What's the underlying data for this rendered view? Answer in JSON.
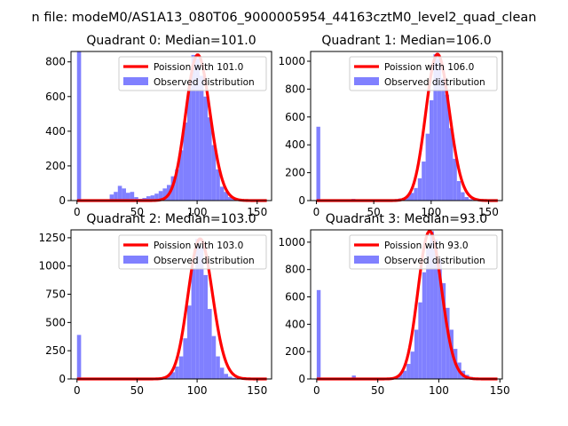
{
  "figure": {
    "suptitle": "n file: modeM0/AS1A13_080T06_9000005954_44163cztM0_level2_quad_clean"
  },
  "colors": {
    "hist": "#8080ff",
    "fit": "#ff0000",
    "axes": "#000000",
    "legend_border": "#cccccc"
  },
  "chart_data": [
    {
      "type": "bar",
      "title": "Quadrant 0: Median=101.0",
      "xlabel": "",
      "ylabel": "",
      "xlim": [
        -5,
        162
      ],
      "ylim": [
        0,
        860
      ],
      "xticks": [
        0,
        50,
        100,
        150
      ],
      "yticks": [
        0,
        200,
        400,
        600,
        800
      ],
      "grid": false,
      "legend_position": "upper-right",
      "bin_width": 3.4,
      "histogram": {
        "name": "Observed distribution",
        "x": [
          1.7,
          5.1,
          8.5,
          11.9,
          15.3,
          18.7,
          22.1,
          25.5,
          28.9,
          32.3,
          35.7,
          39.1,
          42.5,
          45.9,
          49.3,
          52.7,
          56.1,
          59.5,
          62.9,
          66.3,
          69.7,
          73.1,
          76.5,
          79.9,
          83.3,
          86.7,
          90.1,
          93.5,
          96.9,
          100.3,
          103.7,
          107.1,
          110.5,
          113.9,
          117.3,
          120.7,
          124.1,
          127.5,
          130.9,
          134.3,
          137.7,
          141.1,
          144.5,
          147.9,
          151.3,
          154.7
        ],
        "values": [
          860,
          2,
          2,
          2,
          2,
          2,
          3,
          5,
          35,
          50,
          85,
          70,
          45,
          50,
          20,
          10,
          15,
          25,
          30,
          40,
          55,
          70,
          90,
          140,
          180,
          290,
          450,
          650,
          840,
          820,
          720,
          600,
          480,
          320,
          180,
          80,
          50,
          20,
          10,
          5,
          3,
          2,
          1,
          1,
          1,
          0
        ]
      },
      "fit": {
        "name": "Poission with 101.0",
        "mean": 101.0
      }
    },
    {
      "type": "bar",
      "title": "Quadrant 1: Median=106.0",
      "xlabel": "",
      "ylabel": "",
      "xlim": [
        -5,
        162
      ],
      "ylim": [
        0,
        1070
      ],
      "xticks": [
        0,
        50,
        100,
        150
      ],
      "yticks": [
        0,
        200,
        400,
        600,
        800,
        1000
      ],
      "grid": false,
      "legend_position": "upper-right",
      "bin_width": 3.4,
      "histogram": {
        "name": "Observed distribution",
        "x": [
          1.7,
          5.1,
          8.5,
          11.9,
          15.3,
          18.7,
          22.1,
          25.5,
          28.9,
          32.3,
          35.7,
          39.1,
          42.5,
          45.9,
          49.3,
          52.7,
          56.1,
          59.5,
          62.9,
          66.3,
          69.7,
          73.1,
          76.5,
          79.9,
          83.3,
          86.7,
          90.1,
          93.5,
          96.9,
          100.3,
          103.7,
          107.1,
          110.5,
          113.9,
          117.3,
          120.7,
          124.1,
          127.5,
          130.9,
          134.3,
          137.7,
          141.1,
          144.5,
          147.9,
          151.3,
          154.7
        ],
        "values": [
          530,
          2,
          2,
          2,
          2,
          2,
          2,
          2,
          2,
          12,
          3,
          3,
          3,
          3,
          3,
          3,
          3,
          5,
          6,
          8,
          10,
          15,
          20,
          35,
          55,
          90,
          160,
          280,
          480,
          720,
          1050,
          1020,
          880,
          760,
          520,
          300,
          140,
          60,
          25,
          10,
          5,
          3,
          2,
          1,
          1,
          0
        ]
      },
      "fit": {
        "name": "Poission with 106.0",
        "mean": 106.0
      }
    },
    {
      "type": "bar",
      "title": "Quadrant 2: Median=103.0",
      "xlabel": "",
      "ylabel": "",
      "xlim": [
        -5,
        162
      ],
      "ylim": [
        0,
        1320
      ],
      "xticks": [
        0,
        50,
        100,
        150
      ],
      "yticks": [
        0,
        250,
        500,
        750,
        1000,
        1250
      ],
      "grid": false,
      "legend_position": "upper-right",
      "bin_width": 3.4,
      "histogram": {
        "name": "Observed distribution",
        "x": [
          1.7,
          5.1,
          8.5,
          11.9,
          15.3,
          18.7,
          22.1,
          25.5,
          28.9,
          32.3,
          35.7,
          39.1,
          42.5,
          45.9,
          49.3,
          52.7,
          56.1,
          59.5,
          62.9,
          66.3,
          69.7,
          73.1,
          76.5,
          79.9,
          83.3,
          86.7,
          90.1,
          93.5,
          96.9,
          100.3,
          103.7,
          107.1,
          110.5,
          113.9,
          117.3,
          120.7,
          124.1,
          127.5,
          130.9,
          134.3,
          137.7,
          141.1,
          144.5,
          147.9,
          151.3,
          154.7
        ],
        "values": [
          390,
          3,
          2,
          2,
          2,
          2,
          2,
          2,
          2,
          3,
          2,
          2,
          2,
          2,
          2,
          2,
          2,
          3,
          4,
          6,
          12,
          20,
          35,
          60,
          110,
          200,
          360,
          650,
          980,
          1240,
          1180,
          920,
          620,
          380,
          200,
          100,
          45,
          20,
          10,
          5,
          3,
          2,
          1,
          1,
          1,
          0
        ]
      },
      "fit": {
        "name": "Poission with 103.0",
        "mean": 103.0
      }
    },
    {
      "type": "bar",
      "title": "Quadrant 3: Median=93.0",
      "xlabel": "",
      "ylabel": "",
      "xlim": [
        -5,
        152
      ],
      "ylim": [
        0,
        1090
      ],
      "xticks": [
        0,
        50,
        100,
        150
      ],
      "yticks": [
        0,
        200,
        400,
        600,
        800,
        1000
      ],
      "grid": false,
      "legend_position": "upper-right",
      "bin_width": 3.2,
      "histogram": {
        "name": "Observed distribution",
        "x": [
          1.6,
          4.8,
          8.0,
          11.2,
          14.4,
          17.6,
          20.8,
          24.0,
          27.2,
          30.4,
          33.6,
          36.8,
          40.0,
          43.2,
          46.4,
          49.6,
          52.8,
          56.0,
          59.2,
          62.4,
          65.6,
          68.8,
          72.0,
          75.2,
          78.4,
          81.6,
          84.8,
          88.0,
          91.2,
          94.4,
          97.6,
          100.8,
          104.0,
          107.2,
          110.4,
          113.6,
          116.8,
          120.0,
          123.2,
          126.4,
          129.6,
          132.8,
          136.0,
          139.2,
          142.4
        ],
        "values": [
          650,
          3,
          2,
          2,
          2,
          2,
          2,
          2,
          2,
          25,
          3,
          2,
          2,
          2,
          2,
          3,
          4,
          5,
          8,
          12,
          20,
          35,
          60,
          110,
          200,
          360,
          560,
          780,
          960,
          1080,
          1020,
          880,
          700,
          520,
          360,
          220,
          120,
          60,
          30,
          15,
          8,
          4,
          2,
          1,
          0
        ]
      },
      "fit": {
        "name": "Poission with 93.0",
        "mean": 93.0
      }
    }
  ]
}
